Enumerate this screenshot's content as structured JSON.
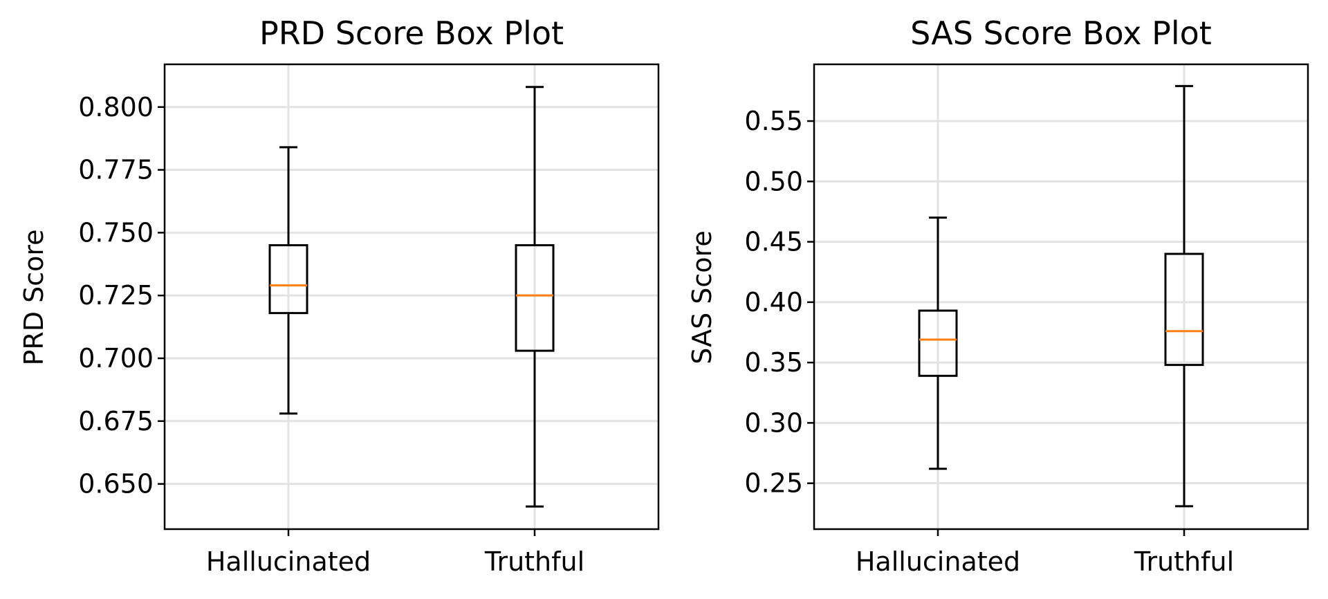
{
  "colors": {
    "median": "#ff7f0e",
    "box": "#000000",
    "grid": "#e3e3e3"
  },
  "chart_data": [
    {
      "type": "box",
      "title": "PRD Score Box Plot",
      "xlabel": "",
      "ylabel": "PRD Score",
      "categories": [
        "Hallucinated",
        "Truthful"
      ],
      "ylim": [
        0.632,
        0.817
      ],
      "yticks": [
        0.65,
        0.675,
        0.7,
        0.725,
        0.75,
        0.775,
        0.8
      ],
      "ytick_labels": [
        "0.650",
        "0.675",
        "0.700",
        "0.725",
        "0.750",
        "0.775",
        "0.800"
      ],
      "grid": true,
      "boxes": [
        {
          "category": "Hallucinated",
          "whisker_low": 0.678,
          "q1": 0.718,
          "median": 0.729,
          "q3": 0.745,
          "whisker_high": 0.784
        },
        {
          "category": "Truthful",
          "whisker_low": 0.641,
          "q1": 0.703,
          "median": 0.725,
          "q3": 0.745,
          "whisker_high": 0.808
        }
      ]
    },
    {
      "type": "box",
      "title": "SAS Score Box Plot",
      "xlabel": "",
      "ylabel": "SAS Score",
      "categories": [
        "Hallucinated",
        "Truthful"
      ],
      "ylim": [
        0.212,
        0.597
      ],
      "yticks": [
        0.25,
        0.3,
        0.35,
        0.4,
        0.45,
        0.5,
        0.55
      ],
      "ytick_labels": [
        "0.25",
        "0.30",
        "0.35",
        "0.40",
        "0.45",
        "0.50",
        "0.55"
      ],
      "grid": true,
      "boxes": [
        {
          "category": "Hallucinated",
          "whisker_low": 0.262,
          "q1": 0.339,
          "median": 0.369,
          "q3": 0.393,
          "whisker_high": 0.47
        },
        {
          "category": "Truthful",
          "whisker_low": 0.231,
          "q1": 0.348,
          "median": 0.376,
          "q3": 0.44,
          "whisker_high": 0.579
        }
      ]
    }
  ]
}
